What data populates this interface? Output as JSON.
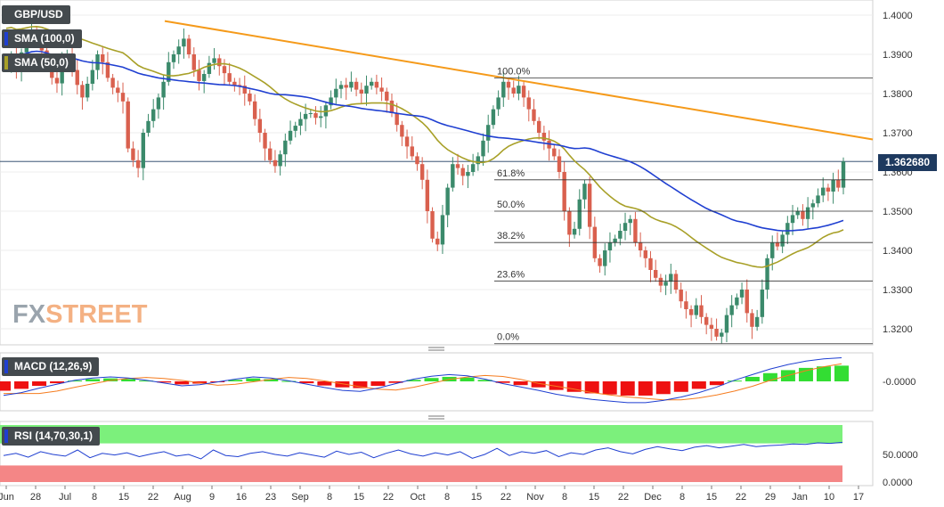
{
  "instrument": "GBP/USD",
  "indicators": {
    "sma100": "SMA (100,0)",
    "sma50": "SMA (50,0)",
    "macd": "MACD (12,26,9)",
    "rsi": "RSI (14,70,30,1)"
  },
  "watermark": {
    "part1": "FX",
    "part2": "STREET"
  },
  "colors": {
    "up": "#3b8a6b",
    "down": "#d9604e",
    "sma100": "#1f3fd1",
    "sma50": "#a8a028",
    "trend": "#f59a1a",
    "macd_pos": "#33dd33",
    "macd_neg": "#ee1111",
    "rsi_over": "#7cf07c",
    "rsi_under": "#f48686"
  },
  "chart_data": {
    "type": "candlestick",
    "price_axis": {
      "ticks": [
        "1.4000",
        "1.3900",
        "1.3800",
        "1.3700",
        "1.3600",
        "1.3500",
        "1.3400",
        "1.3300",
        "1.3200"
      ],
      "tick_values": [
        1.4,
        1.39,
        1.38,
        1.37,
        1.36,
        1.35,
        1.34,
        1.33,
        1.32
      ],
      "range": [
        1.315,
        1.403
      ]
    },
    "last_price": "1.362680",
    "last_value": 1.36268,
    "fibonacci": [
      {
        "label": "100.0%",
        "value": 1.384
      },
      {
        "label": "61.8%",
        "value": 1.358
      },
      {
        "label": "50.0%",
        "value": 1.35
      },
      {
        "label": "38.2%",
        "value": 1.342
      },
      {
        "label": "23.6%",
        "value": 1.3322
      },
      {
        "label": "0.0%",
        "value": 1.3162
      }
    ],
    "trendline": {
      "from": 1.3985,
      "to": 1.3683
    },
    "x_labels": [
      "Jun",
      "28",
      "Jul",
      "8",
      "15",
      "22",
      "Aug",
      "9",
      "16",
      "23",
      "Sep",
      "8",
      "15",
      "22",
      "Oct",
      "8",
      "15",
      "22",
      "Nov",
      "8",
      "15",
      "22",
      "Dec",
      "8",
      "15",
      "22",
      "29",
      "Jan",
      "10",
      "17"
    ],
    "closes": [
      1.387,
      1.389,
      1.3862,
      1.3905,
      1.3935,
      1.396,
      1.3945,
      1.391,
      1.3868,
      1.384,
      1.3826,
      1.388,
      1.3902,
      1.386,
      1.3822,
      1.379,
      1.3825,
      1.386,
      1.39,
      1.388,
      1.384,
      1.3815,
      1.3802,
      1.378,
      1.366,
      1.363,
      1.361,
      1.37,
      1.373,
      1.376,
      1.379,
      1.383,
      1.388,
      1.39,
      1.392,
      1.394,
      1.39,
      1.386,
      1.3832,
      1.385,
      1.3878,
      1.389,
      1.387,
      1.3852,
      1.383,
      1.3822,
      1.382,
      1.38,
      1.378,
      1.3735,
      1.37,
      1.366,
      1.363,
      1.3615,
      1.3645,
      1.368,
      1.3705,
      1.3718,
      1.3735,
      1.3748,
      1.375,
      1.3738,
      1.3742,
      1.377,
      1.379,
      1.3812,
      1.3822,
      1.3815,
      1.383,
      1.381,
      1.38,
      1.382,
      1.383,
      1.3815,
      1.3805,
      1.3782,
      1.375,
      1.372,
      1.369,
      1.3665,
      1.364,
      1.362,
      1.358,
      1.35,
      1.343,
      1.3415,
      1.349,
      1.356,
      1.362,
      1.361,
      1.359,
      1.36,
      1.362,
      1.364,
      1.368,
      1.372,
      1.376,
      1.379,
      1.383,
      1.3815,
      1.38,
      1.382,
      1.379,
      1.376,
      1.373,
      1.37,
      1.368,
      1.366,
      1.364,
      1.36,
      1.35,
      1.344,
      1.3455,
      1.353,
      1.357,
      1.346,
      1.338,
      1.336,
      1.34,
      1.342,
      1.343,
      1.345,
      1.347,
      1.348,
      1.342,
      1.34,
      1.338,
      1.335,
      1.333,
      1.331,
      1.332,
      1.334,
      1.33,
      1.327,
      1.325,
      1.3235,
      1.326,
      1.323,
      1.321,
      1.32,
      1.318,
      1.319,
      1.3235,
      1.326,
      1.328,
      1.33,
      1.324,
      1.3205,
      1.323,
      1.33,
      1.338,
      1.342,
      1.341,
      1.344,
      1.347,
      1.349,
      1.35,
      1.348,
      1.351,
      1.352,
      1.354,
      1.356,
      1.355,
      1.358,
      1.356,
      1.3627
    ],
    "sma100": {
      "from": 1.392,
      "to": 1.3553
    },
    "sma50": {
      "from": 1.4045,
      "to": 1.3393
    },
    "macd": {
      "axis_tick": "-0.0000",
      "values": [
        -0.0025,
        -0.002,
        -0.0012,
        -0.0005,
        0.0002,
        0.0006,
        0.0008,
        0.0006,
        0.0002,
        -0.0003,
        -0.0008,
        -0.0006,
        -0.0001,
        0.0004,
        0.0008,
        0.0006,
        0.0001,
        -0.0005,
        -0.0011,
        -0.0016,
        -0.0018,
        -0.0012,
        -0.0004,
        0.0004,
        0.0009,
        0.0012,
        0.001,
        0.0004,
        -0.0004,
        -0.001,
        -0.0016,
        -0.0023,
        -0.0028,
        -0.0032,
        -0.0035,
        -0.0038,
        -0.0038,
        -0.0034,
        -0.0028,
        -0.002,
        -0.001,
        0.0002,
        0.0012,
        0.0022,
        0.003,
        0.0036,
        0.004,
        0.0042
      ]
    },
    "rsi": {
      "ticks": [
        "50.0000",
        "0.0000"
      ],
      "tick_values": [
        50,
        0
      ],
      "overbought": 70,
      "oversold": 30,
      "values": [
        48,
        52,
        45,
        55,
        50,
        47,
        58,
        44,
        52,
        49,
        53,
        46,
        51,
        55,
        47,
        50,
        42,
        58,
        48,
        46,
        52,
        55,
        50,
        47,
        53,
        49,
        45,
        56,
        50,
        54,
        44,
        52,
        58,
        51,
        47,
        53,
        49,
        55,
        43,
        50,
        61,
        48,
        55,
        52,
        57,
        46,
        53,
        50,
        58,
        62,
        55,
        51,
        59,
        64,
        60,
        57,
        63,
        66,
        62,
        65,
        68,
        64,
        66,
        67,
        69,
        68,
        71,
        70,
        72
      ]
    }
  }
}
